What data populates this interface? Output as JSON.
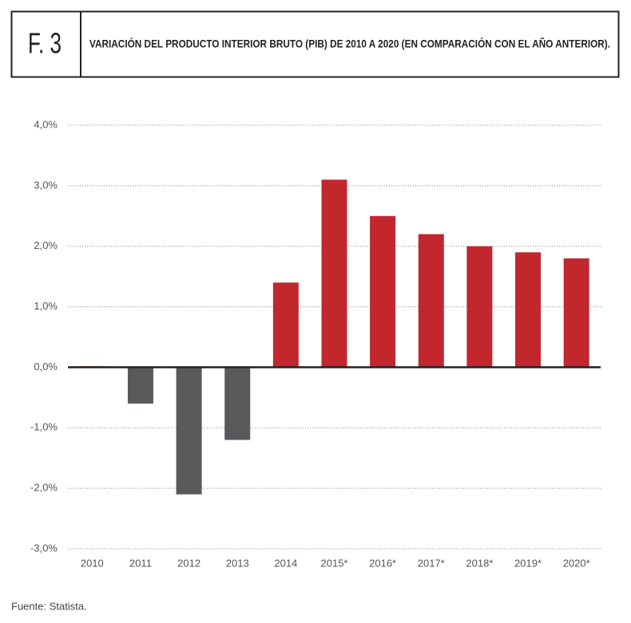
{
  "chart_data": {
    "type": "bar",
    "figure_label": "F. 3",
    "title": "VARIACIÓN DEL PRODUCTO INTERIOR BRUTO (PIB) DE 2010 A 2020 (EN COMPARACIÓN CON EL AÑO ANTERIOR).",
    "source": "Fuente: Statista.",
    "categories": [
      "2010",
      "2011",
      "2012",
      "2013",
      "2014",
      "2015*",
      "2016*",
      "2017*",
      "2018*",
      "2019*",
      "2020*"
    ],
    "values": [
      0.02,
      -0.6,
      -2.1,
      -1.2,
      1.4,
      3.1,
      2.5,
      2.2,
      2.0,
      1.9,
      1.8
    ],
    "positive_color": "#c1272d",
    "negative_color": "#58595b",
    "ylim": [
      -3,
      4
    ],
    "yticks": [
      {
        "value": -3,
        "label": "-3,0%"
      },
      {
        "value": -2,
        "label": "-2,0%"
      },
      {
        "value": -1,
        "label": "-1,0%"
      },
      {
        "value": 0,
        "label": "0,0%"
      },
      {
        "value": 1,
        "label": "1,0%"
      },
      {
        "value": 2,
        "label": "2,0%"
      },
      {
        "value": 3,
        "label": "3,0%"
      },
      {
        "value": 4,
        "label": "4,0%"
      }
    ],
    "grid": true
  }
}
